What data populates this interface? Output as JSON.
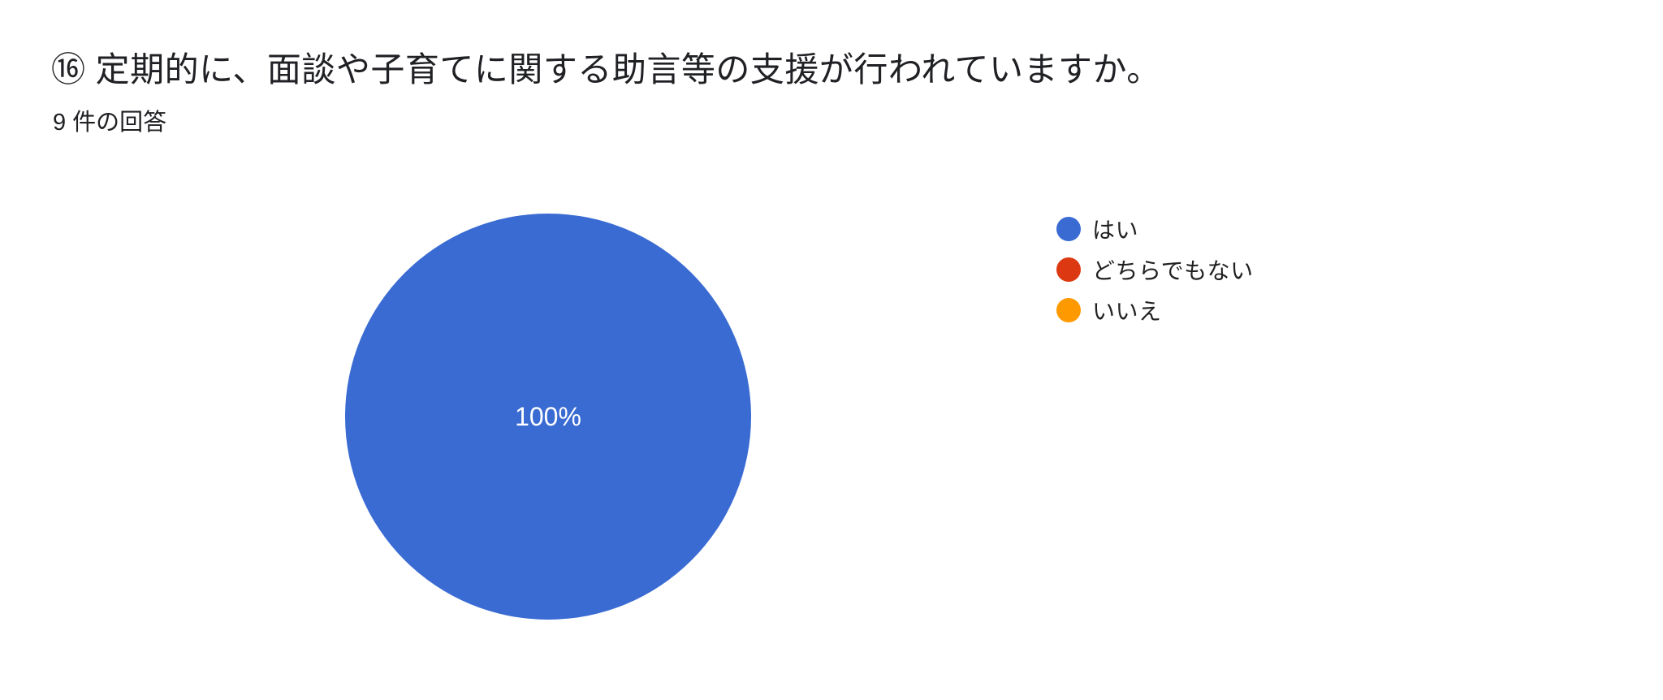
{
  "header": {
    "title": "⑯ 定期的に、面談や子育てに関する助言等の支援が行われていますか。",
    "response_count": "9 件の回答"
  },
  "chart_data": {
    "type": "pie",
    "title": "⑯ 定期的に、面談や子育てに関する助言等の支援が行われていますか。",
    "subtitle": "9 件の回答",
    "total_responses": 9,
    "categories": [
      "はい",
      "どちらでもない",
      "いいえ"
    ],
    "values": [
      9,
      0,
      0
    ],
    "percentages": [
      100,
      0,
      0
    ],
    "visible_slice_label": "100%",
    "colors": [
      "#3A6BD3",
      "#DC3912",
      "#FF9900"
    ],
    "slice_label_color": "#ffffff",
    "text_color": "#202124",
    "legend_position": "right",
    "background": "#ffffff"
  },
  "pie": {
    "label": "100%"
  },
  "legend": {
    "items": [
      {
        "label": "はい",
        "color": "#3A6BD3"
      },
      {
        "label": "どちらでもない",
        "color": "#DC3912"
      },
      {
        "label": "いいえ",
        "color": "#FF9900"
      }
    ]
  }
}
